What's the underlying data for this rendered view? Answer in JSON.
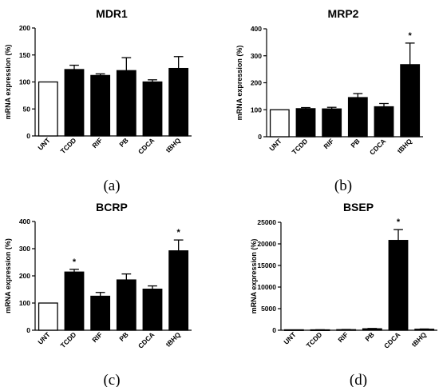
{
  "chart_data": [
    {
      "type": "bar",
      "title": "MDR1",
      "panel_label": "(a)",
      "ylabel": "mRNA expression (%)",
      "xlabel": "",
      "categories": [
        "UNT",
        "TCDD",
        "RIF",
        "PB",
        "CDCA",
        "tBHQ"
      ],
      "values": [
        100,
        123,
        112,
        121,
        100,
        125
      ],
      "errors": [
        0,
        8,
        3,
        24,
        4,
        22
      ],
      "fills": [
        "#ffffff",
        "#000000",
        "#000000",
        "#000000",
        "#000000",
        "#000000"
      ],
      "significant": [
        false,
        false,
        false,
        false,
        false,
        false
      ],
      "ylim": [
        0,
        200
      ],
      "yticks": [
        0,
        50,
        100,
        150,
        200
      ],
      "ytick_labels": [
        "0",
        "50",
        "100",
        "150",
        "200"
      ]
    },
    {
      "type": "bar",
      "title": "MRP2",
      "panel_label": "(b)",
      "ylabel": "mRNA expression (%)",
      "xlabel": "",
      "categories": [
        "UNT",
        "TCDD",
        "RIF",
        "PB",
        "CDCA",
        "tBHQ"
      ],
      "values": [
        100,
        104,
        103,
        145,
        111,
        267
      ],
      "errors": [
        0,
        4,
        6,
        15,
        12,
        80
      ],
      "fills": [
        "#ffffff",
        "#000000",
        "#000000",
        "#000000",
        "#000000",
        "#000000"
      ],
      "significant": [
        false,
        false,
        false,
        false,
        false,
        true
      ],
      "ylim": [
        0,
        400
      ],
      "yticks": [
        0,
        100,
        200,
        300,
        400
      ],
      "ytick_labels": [
        "0",
        "100",
        "200",
        "300",
        "400"
      ]
    },
    {
      "type": "bar",
      "title": "BCRP",
      "panel_label": "(c)",
      "ylabel": "mRNA expression (%)",
      "xlabel": "",
      "categories": [
        "UNT",
        "TCDD",
        "RIF",
        "PB",
        "CDCA",
        "tBHQ"
      ],
      "values": [
        100,
        214,
        125,
        185,
        151,
        292
      ],
      "errors": [
        0,
        10,
        14,
        22,
        12,
        40
      ],
      "fills": [
        "#ffffff",
        "#000000",
        "#000000",
        "#000000",
        "#000000",
        "#000000"
      ],
      "significant": [
        false,
        true,
        false,
        false,
        false,
        true
      ],
      "ylim": [
        0,
        400
      ],
      "yticks": [
        0,
        100,
        200,
        300,
        400
      ],
      "ytick_labels": [
        "0",
        "100",
        "200",
        "300",
        "400"
      ]
    },
    {
      "type": "bar",
      "title": "BSEP",
      "panel_label": "(d)",
      "ylabel": "mRNA expression (%)",
      "xlabel": "",
      "categories": [
        "UNT",
        "TCDD",
        "RIF",
        "PB",
        "CDCA",
        "tBHQ"
      ],
      "values": [
        100,
        90,
        130,
        330,
        20800,
        230
      ],
      "errors": [
        0,
        20,
        40,
        80,
        2500,
        60
      ],
      "fills": [
        "#ffffff",
        "#000000",
        "#000000",
        "#000000",
        "#000000",
        "#000000"
      ],
      "significant": [
        false,
        false,
        false,
        false,
        true,
        false
      ],
      "ylim": [
        0,
        25000
      ],
      "yticks": [
        0,
        5000,
        10000,
        15000,
        20000,
        25000
      ],
      "ytick_labels": [
        "0",
        "5000",
        "10000",
        "15000",
        "20000",
        "25000"
      ]
    }
  ],
  "significance_marker": "*"
}
